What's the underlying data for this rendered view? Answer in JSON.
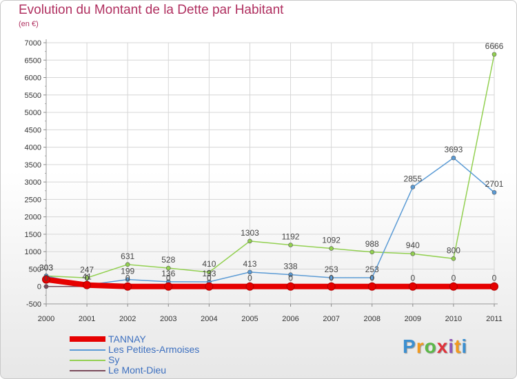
{
  "header": {
    "title": "Evolution du Montant de la Dette par Habitant",
    "subtitle": "(en €)"
  },
  "logo": {
    "text": "Proxiti",
    "colors": [
      "#3b8fd0",
      "#f29a1f",
      "#5cb848",
      "#e0323a",
      "#8f58b8",
      "#f29a1f",
      "#3b8fd0"
    ]
  },
  "chart_data": {
    "type": "line",
    "title": "Evolution du Montant de la Dette par Habitant",
    "subtitle": "(en €)",
    "x": [
      "2000",
      "2001",
      "2002",
      "2003",
      "2004",
      "2005",
      "2006",
      "2007",
      "2008",
      "2009",
      "2010",
      "2011"
    ],
    "ylim": [
      -500,
      7000
    ],
    "yticks": [
      -500,
      0,
      500,
      1000,
      1500,
      2000,
      2500,
      3000,
      3500,
      4000,
      4500,
      5000,
      5500,
      6000,
      6500,
      7000
    ],
    "grid": true,
    "legend_position": "bottom-left",
    "series": [
      {
        "name": "TANNAY",
        "color": "#e60000",
        "values": [
          200,
          41,
          0,
          0,
          0,
          0,
          0,
          0,
          0,
          0,
          0,
          0
        ],
        "labels": [
          "",
          "",
          "",
          "",
          "",
          "",
          "",
          "",
          "",
          "",
          "",
          ""
        ]
      },
      {
        "name": "Les Petites-Armoises",
        "color": "#5b9bd5",
        "values": [
          303,
          41,
          199,
          136,
          133,
          413,
          338,
          253,
          253,
          2855,
          3693,
          2701
        ],
        "labels": [
          "303",
          "41",
          "199",
          "136",
          "133",
          "413",
          "338",
          "253",
          "253",
          "2855",
          "3693",
          "2701"
        ]
      },
      {
        "name": "Sy",
        "color": "#92d050",
        "values": [
          303,
          247,
          631,
          528,
          410,
          1303,
          1192,
          1092,
          988,
          940,
          800,
          6666
        ],
        "labels": [
          "303",
          "247",
          "631",
          "528",
          "410",
          "1303",
          "1192",
          "1092",
          "988",
          "940",
          "800",
          "6666"
        ]
      },
      {
        "name": "Le Mont-Dieu",
        "color": "#7a4a5a",
        "values": [
          0,
          0,
          0,
          0,
          0,
          0,
          0,
          0,
          0,
          0,
          0,
          0
        ],
        "labels": [
          "0",
          "0",
          "0",
          "0",
          "0",
          "0",
          "0",
          "0",
          "0",
          "0",
          "0",
          "0"
        ]
      }
    ]
  }
}
